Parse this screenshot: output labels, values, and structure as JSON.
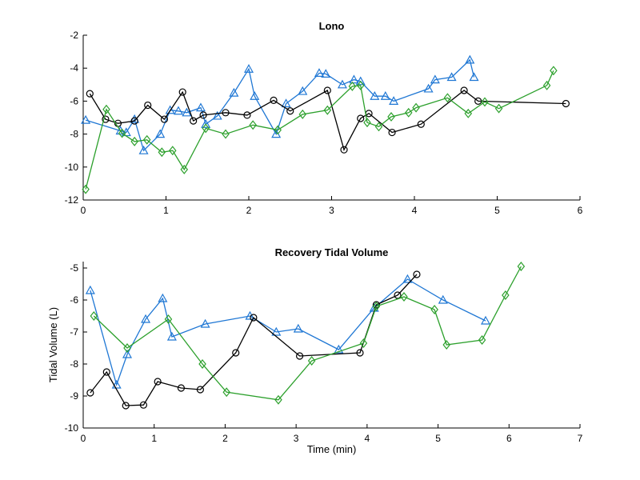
{
  "chart_data": [
    {
      "type": "line",
      "title": "Lono",
      "xlabel": "",
      "ylabel": "",
      "xlim": [
        0,
        6
      ],
      "ylim": [
        -12,
        -2
      ],
      "xticks": [
        "0",
        "1",
        "2",
        "3",
        "4",
        "5",
        "6"
      ],
      "yticks": [
        "-12",
        "-10",
        "-8",
        "-6",
        "-4",
        "-2"
      ],
      "grid": false,
      "series": [
        {
          "color": "#1f77d4",
          "marker": "triangle",
          "x": [
            0.03,
            0.45,
            0.52,
            0.62,
            0.73,
            0.93,
            1.05,
            1.15,
            1.25,
            1.42,
            1.48,
            1.62,
            1.82,
            2.0,
            2.07,
            2.33,
            2.45,
            2.65,
            2.85,
            2.93,
            3.13,
            3.27,
            3.35,
            3.52,
            3.65,
            3.75,
            4.17,
            4.25,
            4.45,
            4.67,
            4.72
          ],
          "y": [
            -7.15,
            -7.8,
            -7.9,
            -7.1,
            -9.0,
            -8.0,
            -6.55,
            -6.6,
            -6.7,
            -6.4,
            -7.4,
            -6.9,
            -5.5,
            -4.05,
            -5.7,
            -8.0,
            -6.15,
            -5.4,
            -4.3,
            -4.35,
            -5.0,
            -4.7,
            -4.8,
            -5.7,
            -5.7,
            -6.0,
            -5.25,
            -4.7,
            -4.55,
            -3.5,
            -4.55
          ]
        },
        {
          "color": "#000000",
          "marker": "circle",
          "x": [
            0.08,
            0.27,
            0.42,
            0.62,
            0.78,
            0.98,
            1.2,
            1.33,
            1.45,
            1.72,
            1.98,
            2.3,
            2.5,
            2.95,
            3.15,
            3.35,
            3.45,
            3.73,
            4.08,
            4.6,
            4.77,
            5.83
          ],
          "y": [
            -5.55,
            -7.1,
            -7.35,
            -7.2,
            -6.25,
            -7.1,
            -5.45,
            -7.2,
            -6.85,
            -6.7,
            -6.85,
            -5.95,
            -6.6,
            -5.35,
            -8.95,
            -7.05,
            -6.75,
            -7.9,
            -7.4,
            -5.35,
            -6.0,
            -6.15
          ]
        },
        {
          "color": "#2ca02c",
          "marker": "diamond",
          "x": [
            0.03,
            0.28,
            0.47,
            0.62,
            0.77,
            0.95,
            1.08,
            1.22,
            1.48,
            1.72,
            2.05,
            2.35,
            2.65,
            2.95,
            3.25,
            3.35,
            3.43,
            3.57,
            3.72,
            3.93,
            4.02,
            4.4,
            4.65,
            4.85,
            5.02,
            5.6,
            5.68
          ],
          "y": [
            -11.35,
            -6.5,
            -7.95,
            -8.45,
            -8.35,
            -9.1,
            -9.0,
            -10.15,
            -7.65,
            -8.0,
            -7.45,
            -7.75,
            -6.8,
            -6.55,
            -5.1,
            -5.05,
            -7.3,
            -7.55,
            -6.95,
            -6.7,
            -6.4,
            -5.8,
            -6.75,
            -6.05,
            -6.45,
            -5.05,
            -4.15
          ]
        }
      ]
    },
    {
      "type": "line",
      "title": "Recovery Tidal Volume",
      "xlabel": "Time (min)",
      "ylabel": "Tidal Volume (L)",
      "xlim": [
        0,
        7
      ],
      "ylim": [
        -10,
        -4.8
      ],
      "xticks": [
        "0",
        "1",
        "2",
        "3",
        "4",
        "5",
        "6",
        "7"
      ],
      "yticks": [
        "-10",
        "-9",
        "-8",
        "-7",
        "-6",
        "-5"
      ],
      "grid": false,
      "series": [
        {
          "color": "#1f77d4",
          "marker": "triangle",
          "x": [
            0.1,
            0.47,
            0.62,
            0.88,
            1.12,
            1.25,
            1.72,
            2.35,
            2.72,
            3.03,
            3.6,
            4.1,
            4.57,
            5.07,
            5.67
          ],
          "y": [
            -5.7,
            -8.65,
            -7.7,
            -6.6,
            -5.95,
            -7.15,
            -6.75,
            -6.5,
            -7.0,
            -6.9,
            -7.55,
            -6.25,
            -5.35,
            -6.0,
            -6.65
          ]
        },
        {
          "color": "#000000",
          "marker": "circle",
          "x": [
            0.1,
            0.33,
            0.6,
            0.85,
            1.05,
            1.38,
            1.65,
            2.15,
            2.4,
            3.05,
            3.9,
            4.13,
            4.43,
            4.7
          ],
          "y": [
            -8.9,
            -8.25,
            -9.3,
            -9.28,
            -8.55,
            -8.75,
            -8.8,
            -7.65,
            -6.55,
            -7.75,
            -7.65,
            -6.15,
            -5.85,
            -5.2
          ]
        },
        {
          "color": "#2ca02c",
          "marker": "diamond",
          "x": [
            0.15,
            0.62,
            1.2,
            1.68,
            2.02,
            2.75,
            3.22,
            3.95,
            4.13,
            4.52,
            4.95,
            5.12,
            5.62,
            5.95,
            6.17
          ],
          "y": [
            -6.5,
            -7.5,
            -6.6,
            -8.0,
            -8.88,
            -9.12,
            -7.9,
            -7.35,
            -6.2,
            -5.9,
            -6.3,
            -7.4,
            -7.25,
            -5.85,
            -4.95
          ]
        }
      ]
    }
  ]
}
